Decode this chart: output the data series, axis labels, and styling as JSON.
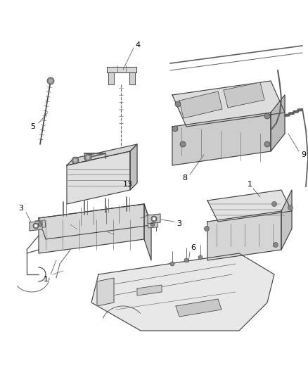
{
  "fig_width": 4.38,
  "fig_height": 5.33,
  "dpi": 100,
  "bg": "#ffffff",
  "lc": "#404040",
  "lc2": "#606060",
  "lc_light": "#909090",
  "label_fs": 7.5,
  "leader_lw": 0.6,
  "main_lw": 0.8,
  "thin_lw": 0.5
}
